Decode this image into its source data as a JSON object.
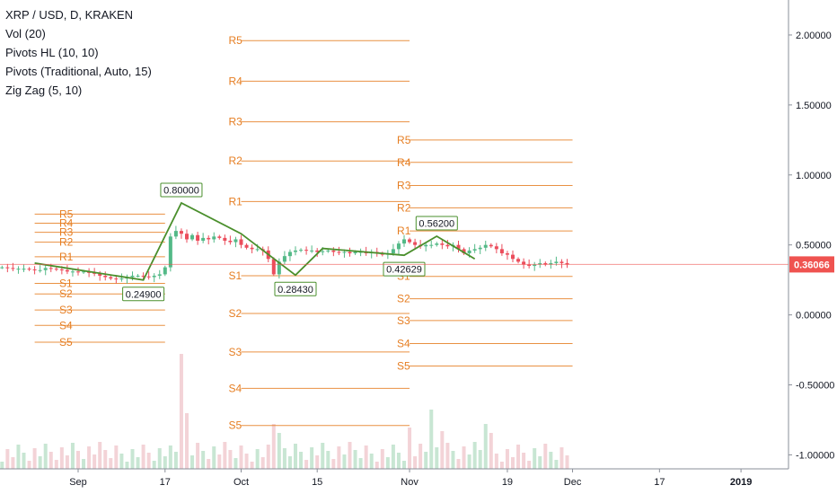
{
  "header": {
    "title": "XRP / USD, D, KRAKEN",
    "indicators": [
      "Vol (20)",
      "Pivots HL (10, 10)",
      "Pivots (Traditional, Auto, 15)",
      "Zig Zag (5, 10)"
    ]
  },
  "colors": {
    "up": "#53b987",
    "down": "#eb4d5c",
    "pivot": "#e67e22",
    "zigzag": "#4a8f2c",
    "price_line": "#ef5350",
    "vol_up": "#c8e6d3",
    "vol_down": "#f3d3d7"
  },
  "chart_data": {
    "type": "candlestick",
    "title": "XRP / USD, D, KRAKEN",
    "x_axis": {
      "ticks": [
        {
          "label": "Sep",
          "day": 0
        },
        {
          "label": "17",
          "day": 16
        },
        {
          "label": "Oct",
          "day": 30
        },
        {
          "label": "15",
          "day": 44
        },
        {
          "label": "Nov",
          "day": 61
        },
        {
          "label": "19",
          "day": 79
        },
        {
          "label": "Dec",
          "day": 91
        },
        {
          "label": "17",
          "day": 107
        },
        {
          "label": "2019",
          "day": 122
        }
      ]
    },
    "y_axis": {
      "range": [
        -1.1,
        2.25
      ],
      "ticks": [
        "2.00000",
        "1.50000",
        "1.00000",
        "0.50000",
        "0.00000",
        "-0.50000",
        "-1.00000"
      ],
      "tick_values": [
        2.0,
        1.5,
        1.0,
        0.5,
        0.0,
        -0.5,
        -1.0
      ]
    },
    "last_price": {
      "value": 0.36066,
      "label": "0.36066"
    },
    "pivot_sets": [
      {
        "day_start": -8,
        "day_end": 16,
        "levels": [
          {
            "name": "R5",
            "value": 0.72
          },
          {
            "name": "R4",
            "value": 0.655
          },
          {
            "name": "R3",
            "value": 0.59
          },
          {
            "name": "R2",
            "value": 0.52
          },
          {
            "name": "R1",
            "value": 0.415
          },
          {
            "name": "S1",
            "value": 0.225
          },
          {
            "name": "S2",
            "value": 0.15
          },
          {
            "name": "S3",
            "value": 0.035
          },
          {
            "name": "S4",
            "value": -0.075
          },
          {
            "name": "S5",
            "value": -0.195
          }
        ]
      },
      {
        "day_start": 30,
        "day_end": 61,
        "levels": [
          {
            "name": "R5",
            "value": 1.96
          },
          {
            "name": "R4",
            "value": 1.67
          },
          {
            "name": "R3",
            "value": 1.38
          },
          {
            "name": "R2",
            "value": 1.1
          },
          {
            "name": "R1",
            "value": 0.81
          },
          {
            "name": "S1",
            "value": 0.28
          },
          {
            "name": "S2",
            "value": 0.01
          },
          {
            "name": "S3",
            "value": -0.265
          },
          {
            "name": "S4",
            "value": -0.525
          },
          {
            "name": "S5",
            "value": -0.79
          }
        ]
      },
      {
        "day_start": 61,
        "day_end": 91,
        "levels": [
          {
            "name": "R5",
            "value": 1.25
          },
          {
            "name": "R4",
            "value": 1.09
          },
          {
            "name": "R3",
            "value": 0.925
          },
          {
            "name": "R2",
            "value": 0.765
          },
          {
            "name": "R1",
            "value": 0.6
          },
          {
            "name": "S1",
            "value": 0.275
          },
          {
            "name": "S2",
            "value": 0.115
          },
          {
            "name": "S3",
            "value": -0.04
          },
          {
            "name": "S4",
            "value": -0.205
          },
          {
            "name": "S5",
            "value": -0.365
          }
        ]
      }
    ],
    "zigzag": {
      "points": [
        {
          "day": -8,
          "value": 0.37
        },
        {
          "day": 12,
          "value": 0.249
        },
        {
          "day": 19,
          "value": 0.8
        },
        {
          "day": 30,
          "value": 0.58
        },
        {
          "day": 40,
          "value": 0.2843
        },
        {
          "day": 45,
          "value": 0.475
        },
        {
          "day": 60,
          "value": 0.42629
        },
        {
          "day": 66,
          "value": 0.562
        },
        {
          "day": 73,
          "value": 0.4
        }
      ],
      "labels": [
        {
          "text": "0.24900",
          "day": 12,
          "value": 0.249,
          "pos": "below"
        },
        {
          "text": "0.80000",
          "day": 19,
          "value": 0.8,
          "pos": "above"
        },
        {
          "text": "0.28430",
          "day": 40,
          "value": 0.2843,
          "pos": "below"
        },
        {
          "text": "0.42629",
          "day": 60,
          "value": 0.42629,
          "pos": "below"
        },
        {
          "text": "0.56200",
          "day": 66,
          "value": 0.562,
          "pos": "above"
        }
      ]
    },
    "close_series": [
      0.34,
      0.335,
      0.33,
      0.33,
      0.33,
      0.325,
      0.32,
      0.32,
      0.335,
      0.33,
      0.325,
      0.32,
      0.31,
      0.31,
      0.305,
      0.31,
      0.3,
      0.295,
      0.28,
      0.27,
      0.26,
      0.255,
      0.26,
      0.27,
      0.28,
      0.28,
      0.275,
      0.27,
      0.28,
      0.29,
      0.34,
      0.56,
      0.6,
      0.58,
      0.54,
      0.57,
      0.53,
      0.55,
      0.54,
      0.56,
      0.55,
      0.53,
      0.52,
      0.54,
      0.5,
      0.48,
      0.47,
      0.47,
      0.46,
      0.4,
      0.29,
      0.38,
      0.42,
      0.45,
      0.46,
      0.465,
      0.46,
      0.46,
      0.45,
      0.455,
      0.46,
      0.45,
      0.445,
      0.45,
      0.44,
      0.45,
      0.45,
      0.44,
      0.45,
      0.44,
      0.43,
      0.44,
      0.47,
      0.51,
      0.54,
      0.52,
      0.5,
      0.49,
      0.5,
      0.5,
      0.51,
      0.5,
      0.49,
      0.5,
      0.47,
      0.44,
      0.46,
      0.47,
      0.48,
      0.5,
      0.49,
      0.47,
      0.44,
      0.43,
      0.4,
      0.38,
      0.36,
      0.35,
      0.36,
      0.37,
      0.36,
      0.37,
      0.38,
      0.37,
      0.36
    ]
  }
}
